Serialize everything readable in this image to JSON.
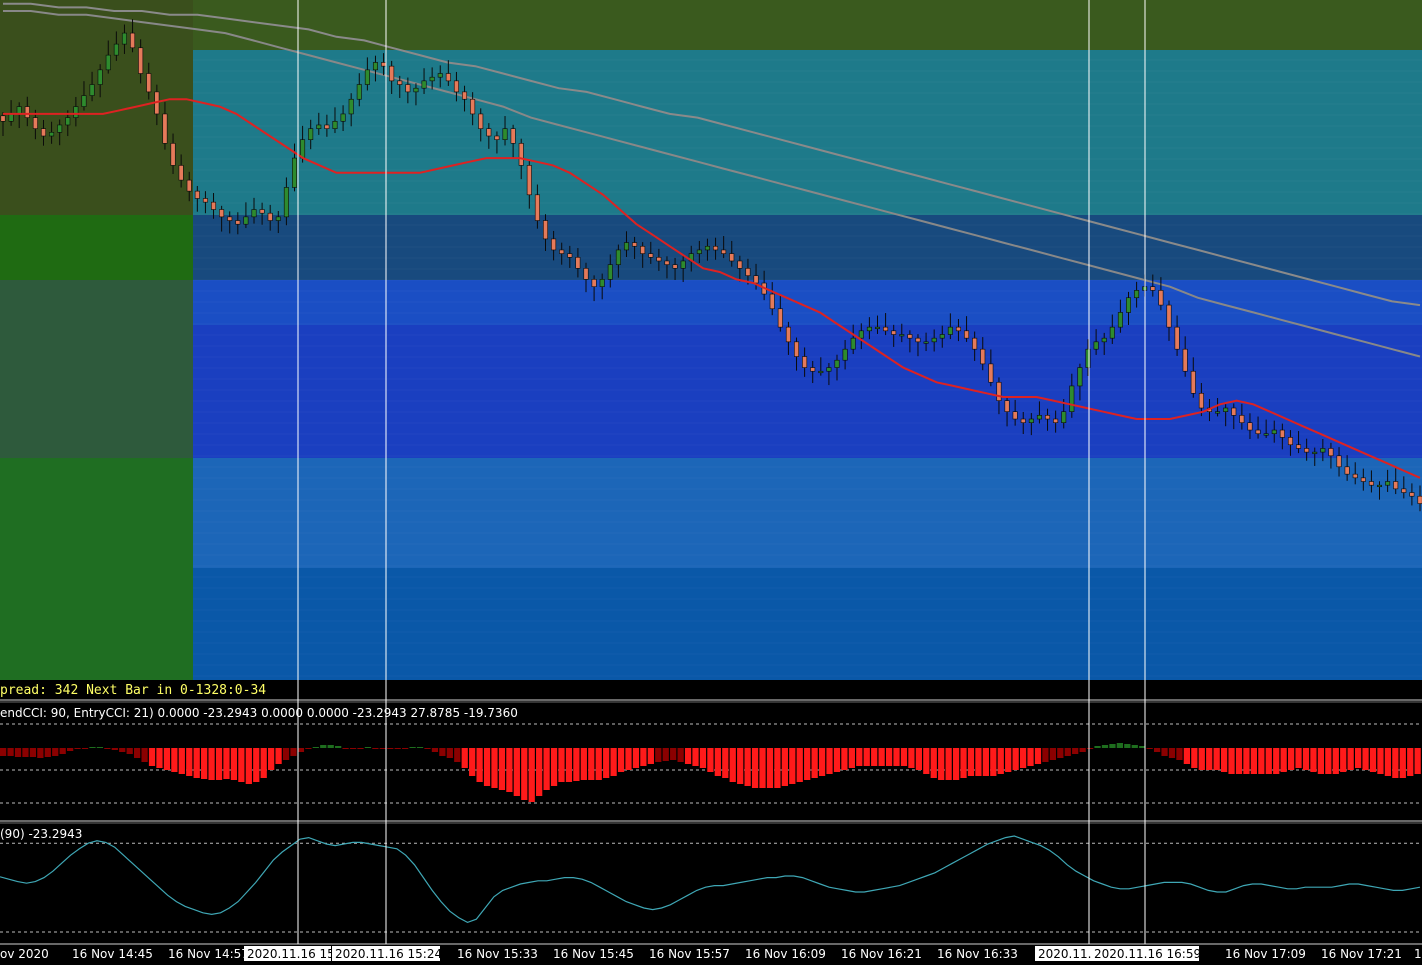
{
  "status_line": {
    "spread_text": "pread: 342 Next Bar in 0-1328:0-34"
  },
  "subpanel1": {
    "header_text": "endCCI: 90, EntryCCI: 21)  0.0000 -23.2943 0.0000 0.0000 -23.2943 27.8785 -19.7360"
  },
  "subpanel2": {
    "header_text": "(90) -23.2943"
  },
  "time_axis": {
    "labels": [
      "ov 2020",
      "16 Nov 14:45",
      "16 Nov 14:57",
      "16 Nov 15:33",
      "16 Nov 15:45",
      "16 Nov 15:57",
      "16 Nov 16:09",
      "16 Nov 16:21",
      "16 Nov 16:33",
      "16 Nov 17:09",
      "16 Nov 17:21",
      "1"
    ],
    "highlighted_labels": [
      "2020.11.16 15",
      "2020.11.16 15:24",
      "2020.11.",
      "2020.11.16 16:59"
    ]
  },
  "colors": {
    "background": "#000000",
    "bull_candle": "#2e8b2e",
    "bear_candle": "#e57a5a",
    "ma_fast": "#dd2222",
    "ma_slow": "#888888",
    "hist_strong_neg": "#ff1a1a",
    "hist_weak_neg": "#8b0000",
    "hist_pos": "#1e6e1e",
    "cci_line": "#3fa7b5",
    "vertical_lines": "#ffffff",
    "status_text": "#ffff66",
    "zone_olive": "#3a5a1e",
    "zone_teal": "#1e7a8a",
    "zone_blue": "#1a4ec4"
  },
  "chart_data": [
    {
      "type": "candlestick",
      "price_series": [
        62,
        64,
        66,
        63,
        60,
        58,
        59,
        61,
        63,
        66,
        69,
        72,
        76,
        80,
        83,
        86,
        82,
        75,
        70,
        64,
        56,
        50,
        46,
        43,
        41,
        40,
        38,
        36,
        35,
        34,
        36,
        38,
        37,
        35,
        36,
        44,
        52,
        57,
        60,
        61,
        60,
        62,
        64,
        68,
        72,
        76,
        78,
        77,
        73,
        72,
        70,
        71,
        73,
        74,
        75,
        73,
        70,
        68,
        64,
        60,
        58,
        57,
        60,
        56,
        50,
        42,
        35,
        30,
        27,
        26,
        25,
        22,
        19,
        17,
        19,
        23,
        27,
        29,
        28,
        26,
        25,
        24,
        23,
        22,
        24,
        26,
        27,
        28,
        27,
        26,
        24,
        22,
        20,
        18,
        15,
        11,
        6,
        2,
        -2,
        -5,
        -6,
        -6,
        -5,
        -3,
        0,
        3,
        5,
        6,
        6,
        5,
        4,
        4,
        3,
        2,
        2,
        3,
        4,
        6,
        5,
        3,
        0,
        -4,
        -9,
        -14,
        -17,
        -19,
        -20,
        -19,
        -18,
        -19,
        -20,
        -17,
        -10,
        -5,
        0,
        2,
        3,
        6,
        10,
        14,
        16,
        17,
        16,
        12,
        6,
        0,
        -6,
        -12,
        -16,
        -17,
        -17,
        -16,
        -18,
        -20,
        -22,
        -23,
        -23,
        -22,
        -24,
        -26,
        -27,
        -28,
        -28,
        -27,
        -29,
        -32,
        -34,
        -35,
        -36,
        -37,
        -37,
        -36,
        -38,
        -39,
        -40,
        -42
      ],
      "ma_fast_series": [
        64,
        64,
        64,
        64,
        64,
        64,
        64,
        65,
        66,
        67,
        68,
        68,
        67,
        66,
        64,
        61,
        58,
        55,
        52,
        50,
        48,
        48,
        48,
        48,
        48,
        48,
        49,
        50,
        51,
        52,
        52,
        52,
        51,
        50,
        48,
        45,
        42,
        38,
        34,
        31,
        28,
        25,
        22,
        21,
        19,
        18,
        16,
        14,
        12,
        10,
        7,
        4,
        1,
        -2,
        -5,
        -7,
        -9,
        -10,
        -11,
        -12,
        -13,
        -13,
        -13,
        -14,
        -15,
        -16,
        -17,
        -18,
        -19,
        -19,
        -19,
        -18,
        -17,
        -15,
        -14,
        -15,
        -17,
        -19,
        -21,
        -23,
        -25,
        -27,
        -29,
        -31,
        -33,
        -35
      ],
      "ma_slow_upper_series": [
        94,
        94,
        93,
        93,
        92,
        92,
        91,
        91,
        90,
        89,
        88,
        87,
        85,
        84,
        82,
        80,
        78,
        77,
        75,
        73,
        71,
        70,
        68,
        66,
        64,
        63,
        61,
        59,
        57,
        55,
        53,
        51,
        49,
        47,
        45,
        43,
        41,
        39,
        37,
        35,
        33,
        31,
        29,
        27,
        25,
        23,
        21,
        19,
        17,
        15,
        13,
        12
      ],
      "ma_slow_lower_series": [
        92,
        92,
        91,
        91,
        90,
        89,
        88,
        87,
        86,
        84,
        82,
        80,
        78,
        76,
        74,
        72,
        70,
        68,
        66,
        63,
        61,
        59,
        57,
        55,
        53,
        51,
        49,
        47,
        45,
        43,
        41,
        39,
        37,
        35,
        33,
        31,
        29,
        27,
        25,
        23,
        21,
        19,
        17,
        14,
        12,
        10,
        8,
        6,
        4,
        2,
        0,
        -2
      ],
      "ylim": [
        -90,
        95
      ]
    },
    {
      "type": "bar",
      "series_ref": "cci_histogram",
      "values": [
        -8,
        -8,
        -9,
        -9,
        -9,
        -10,
        -9,
        -8,
        -6,
        -3,
        0,
        0,
        1,
        1,
        0,
        -2,
        -4,
        -6,
        -10,
        -14,
        -18,
        -20,
        -22,
        -24,
        -26,
        -28,
        -30,
        -31,
        -32,
        -32,
        -31,
        -32,
        -34,
        -36,
        -34,
        -30,
        -22,
        -16,
        -12,
        -8,
        -4,
        0,
        1,
        3,
        3,
        2,
        0,
        0,
        0,
        1,
        0,
        0,
        0,
        0,
        0,
        1,
        1,
        0,
        -4,
        -8,
        -10,
        -14,
        -20,
        -28,
        -34,
        -38,
        -40,
        -42,
        -44,
        -48,
        -52,
        -54,
        -48,
        -42,
        -38,
        -34,
        -34,
        -33,
        -32,
        -32,
        -32,
        -30,
        -28,
        -24,
        -22,
        -20,
        -18,
        -16,
        -14,
        -13,
        -12,
        -14,
        -16,
        -18,
        -20,
        -24,
        -28,
        -30,
        -34,
        -36,
        -38,
        -40,
        -40,
        -40,
        -40,
        -38,
        -36,
        -34,
        -32,
        -30,
        -28,
        -26,
        -24,
        -22,
        -20,
        -18,
        -18,
        -18,
        -18,
        -18,
        -18,
        -18,
        -20,
        -22,
        -26,
        -30,
        -32,
        -32,
        -32,
        -30,
        -28,
        -28,
        -28,
        -28,
        -26,
        -24,
        -22,
        -20,
        -18,
        -16,
        -14,
        -12,
        -10,
        -8,
        -6,
        -4,
        0,
        2,
        3,
        4,
        5,
        4,
        3,
        2,
        0,
        -4,
        -8,
        -10,
        -12,
        -16,
        -20,
        -22,
        -22,
        -22,
        -24,
        -26,
        -26,
        -26,
        -26,
        -26,
        -26,
        -26,
        -24,
        -22,
        -20,
        -22,
        -24,
        -26,
        -26,
        -26,
        -24,
        -22,
        -20,
        -22,
        -24,
        -26,
        -28,
        -30,
        -30,
        -28,
        -26
      ],
      "reference_levels": [
        21,
        0,
        -21,
        -90
      ],
      "ylim": [
        -60,
        10
      ]
    },
    {
      "type": "line",
      "series_ref": "cci_line",
      "values": [
        -21,
        -24,
        -27,
        -29,
        -27,
        -22,
        -14,
        -4,
        6,
        14,
        21,
        24,
        22,
        16,
        6,
        -4,
        -14,
        -24,
        -34,
        -44,
        -52,
        -58,
        -62,
        -66,
        -68,
        -66,
        -60,
        -52,
        -40,
        -28,
        -14,
        0,
        10,
        18,
        26,
        28,
        24,
        20,
        18,
        20,
        22,
        22,
        20,
        18,
        16,
        14,
        6,
        -6,
        -22,
        -38,
        -52,
        -64,
        -72,
        -78,
        -74,
        -60,
        -46,
        -38,
        -34,
        -30,
        -28,
        -26,
        -26,
        -24,
        -22,
        -22,
        -24,
        -28,
        -34,
        -40,
        -46,
        -52,
        -56,
        -60,
        -62,
        -60,
        -56,
        -50,
        -44,
        -38,
        -34,
        -32,
        -32,
        -30,
        -28,
        -26,
        -24,
        -22,
        -22,
        -20,
        -20,
        -22,
        -26,
        -30,
        -34,
        -36,
        -38,
        -40,
        -40,
        -38,
        -36,
        -34,
        -32,
        -28,
        -24,
        -20,
        -16,
        -10,
        -4,
        2,
        8,
        14,
        20,
        24,
        28,
        30,
        26,
        22,
        18,
        12,
        4,
        -6,
        -14,
        -20,
        -26,
        -30,
        -34,
        -36,
        -36,
        -34,
        -32,
        -30,
        -28,
        -28,
        -28,
        -30,
        -34,
        -38,
        -40,
        -40,
        -36,
        -32,
        -30,
        -30,
        -32,
        -34,
        -36,
        -36,
        -34,
        -34,
        -34,
        -34,
        -32,
        -30,
        -30,
        -32,
        -34,
        -36,
        -38,
        -38,
        -36,
        -34
      ],
      "reference_levels": [
        21,
        -90
      ],
      "ylim": [
        -100,
        40
      ]
    }
  ]
}
